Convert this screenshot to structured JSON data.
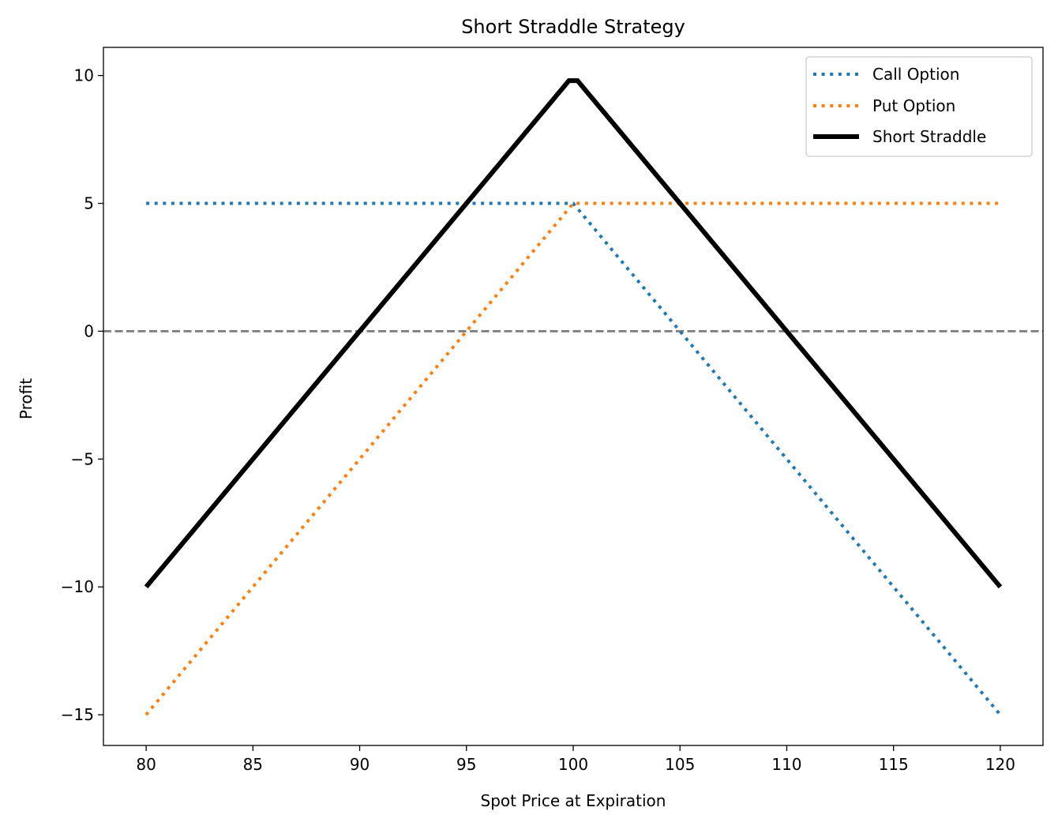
{
  "chart_data": {
    "type": "line",
    "title": "Short Straddle Strategy",
    "xlabel": "Spot Price at Expiration",
    "ylabel": "Profit",
    "xlim": [
      78,
      122
    ],
    "ylim": [
      -16.2,
      11.1
    ],
    "xticks": [
      80,
      85,
      90,
      95,
      100,
      105,
      110,
      115,
      120
    ],
    "yticks": [
      10,
      5,
      0,
      -5,
      -10,
      -15
    ],
    "grid": false,
    "legend_position": "top-right",
    "reference_line": {
      "y": 0,
      "style": "dashed",
      "color": "#808080"
    },
    "series": [
      {
        "name": "Call Option",
        "style": "dotted",
        "color": "#1f77b4",
        "x": [
          80,
          100,
          120
        ],
        "y": [
          5,
          5,
          -15
        ]
      },
      {
        "name": "Put Option",
        "style": "dotted",
        "color": "#ff7f0e",
        "x": [
          80,
          100,
          120
        ],
        "y": [
          -15,
          5,
          5
        ]
      },
      {
        "name": "Short Straddle",
        "style": "solid",
        "color": "#000000",
        "x": [
          80,
          99.8,
          100.2,
          120
        ],
        "y": [
          -10,
          9.8,
          9.8,
          -10
        ]
      }
    ]
  }
}
